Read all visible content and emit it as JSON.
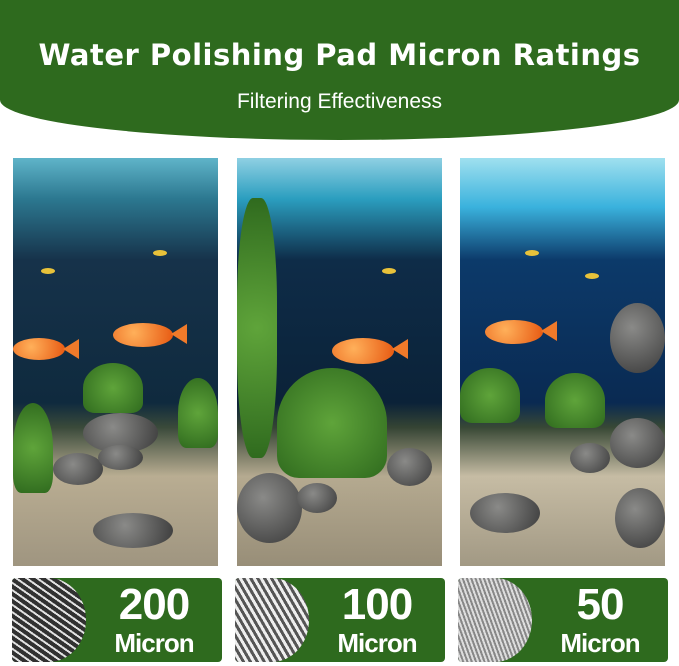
{
  "header": {
    "title": "Water Polishing Pad Micron Ratings",
    "subtitle": "Filtering Effectiveness",
    "color": "#2e6a1e"
  },
  "ratings": [
    {
      "value": "200",
      "unit": "Micron"
    },
    {
      "value": "100",
      "unit": "Micron"
    },
    {
      "value": "50",
      "unit": "Micron"
    }
  ]
}
